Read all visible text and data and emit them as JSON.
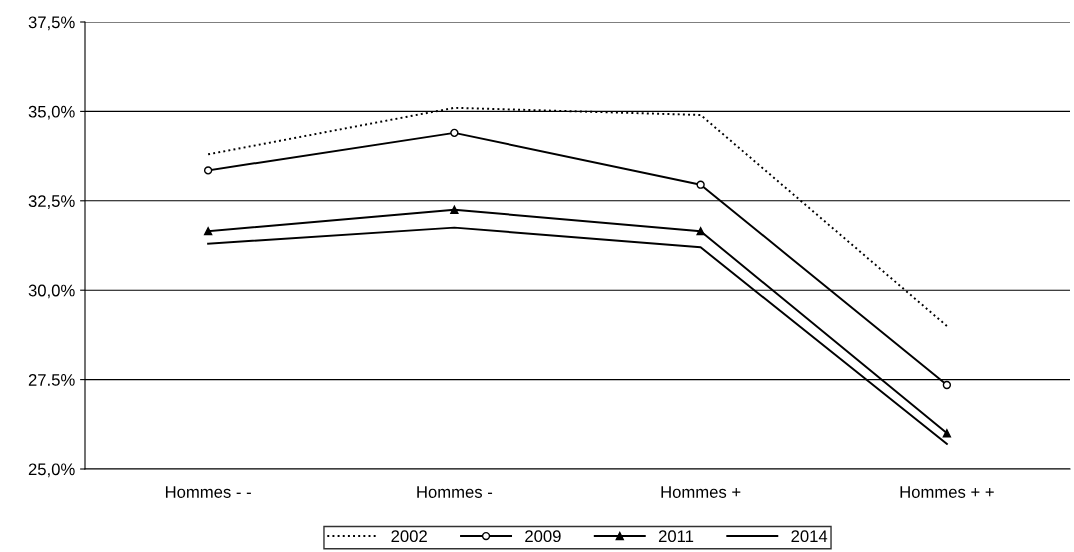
{
  "chart_data": {
    "type": "line",
    "categories": [
      "Hommes - -",
      "Hommes -",
      "Hommes +",
      "Hommes + +"
    ],
    "series": [
      {
        "name": "2002",
        "color": "#000000",
        "marker": "none",
        "line_style": "dotted",
        "values": [
          33.8,
          35.1,
          34.9,
          29.0
        ]
      },
      {
        "name": "2009",
        "color": "#000000",
        "marker": "circle",
        "line_style": "solid",
        "values": [
          33.35,
          34.4,
          32.95,
          27.35
        ]
      },
      {
        "name": "2011",
        "color": "#000000",
        "marker": "triangle",
        "line_style": "solid",
        "values": [
          31.65,
          32.25,
          31.65,
          26.0
        ]
      },
      {
        "name": "2014",
        "color": "#000000",
        "marker": "none",
        "line_style": "solid",
        "values": [
          31.3,
          31.75,
          31.2,
          25.7
        ]
      }
    ],
    "ylim": [
      25.0,
      37.5
    ],
    "yticks": [
      {
        "value": 25.0,
        "label": "25,0%"
      },
      {
        "value": 27.5,
        "label": "27.5%"
      },
      {
        "value": 30.0,
        "label": "30,0%"
      },
      {
        "value": 32.5,
        "label": "32,5%"
      },
      {
        "value": 35.0,
        "label": "35,0%"
      },
      {
        "value": 37.5,
        "label": "37,5%"
      }
    ],
    "grid": "y",
    "legend": "bottom"
  }
}
